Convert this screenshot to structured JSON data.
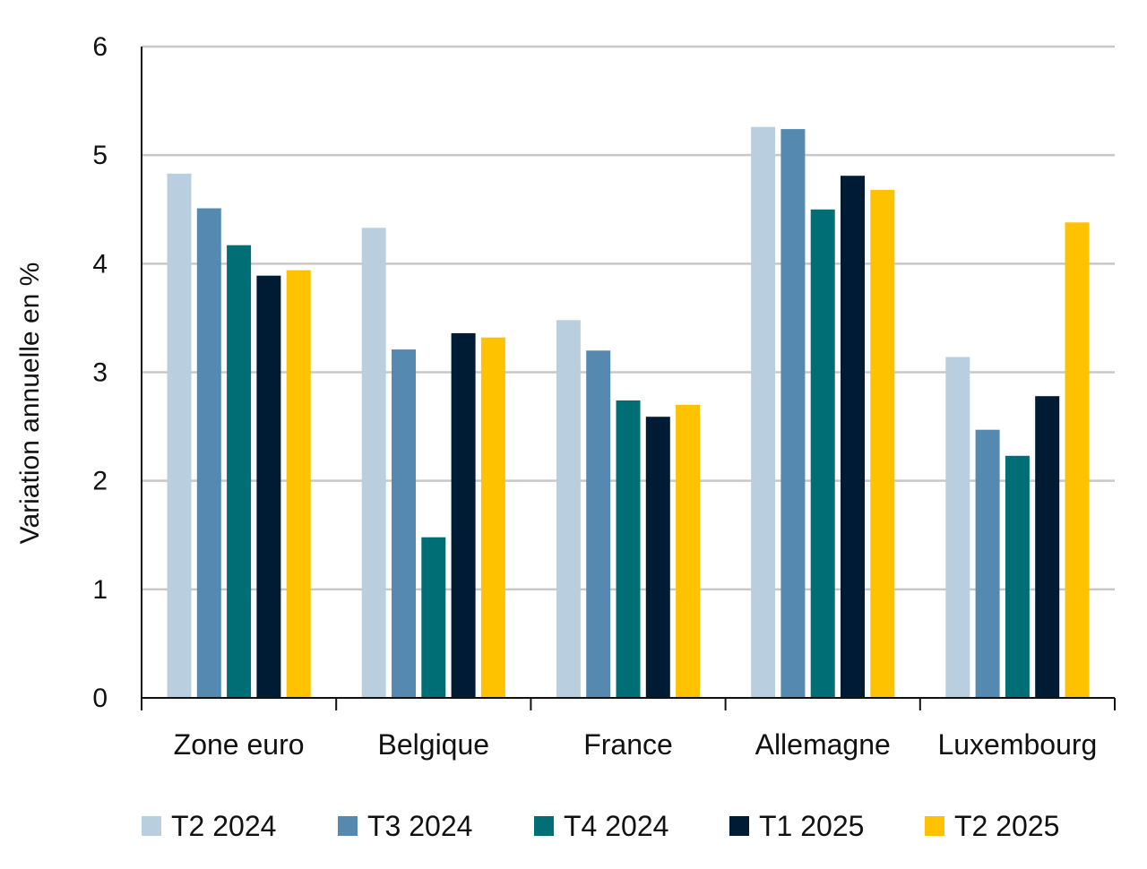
{
  "chart_data": {
    "type": "bar",
    "title": "",
    "xlabel": "",
    "ylabel": "Variation annuelle en %",
    "ylim": [
      0,
      6
    ],
    "yticks": [
      0,
      1,
      2,
      3,
      4,
      5,
      6
    ],
    "grid": true,
    "legend_position": "bottom",
    "categories": [
      "Zone euro",
      "Belgique",
      "France",
      "Allemagne",
      "Luxembourg"
    ],
    "series": [
      {
        "name": "T2 2024",
        "color": "#b9cfe0",
        "values": [
          4.83,
          4.33,
          3.48,
          5.26,
          3.14
        ]
      },
      {
        "name": "T3 2024",
        "color": "#5689b0",
        "values": [
          4.51,
          3.21,
          3.2,
          5.24,
          2.47
        ]
      },
      {
        "name": "T4 2024",
        "color": "#006f75",
        "values": [
          4.17,
          1.48,
          2.74,
          4.5,
          2.23
        ]
      },
      {
        "name": "T1 2025",
        "color": "#001c35",
        "values": [
          3.89,
          3.36,
          2.59,
          4.81,
          2.78
        ]
      },
      {
        "name": "T2 2025",
        "color": "#fec200",
        "values": [
          3.94,
          3.32,
          2.7,
          4.68,
          4.38
        ]
      }
    ]
  }
}
